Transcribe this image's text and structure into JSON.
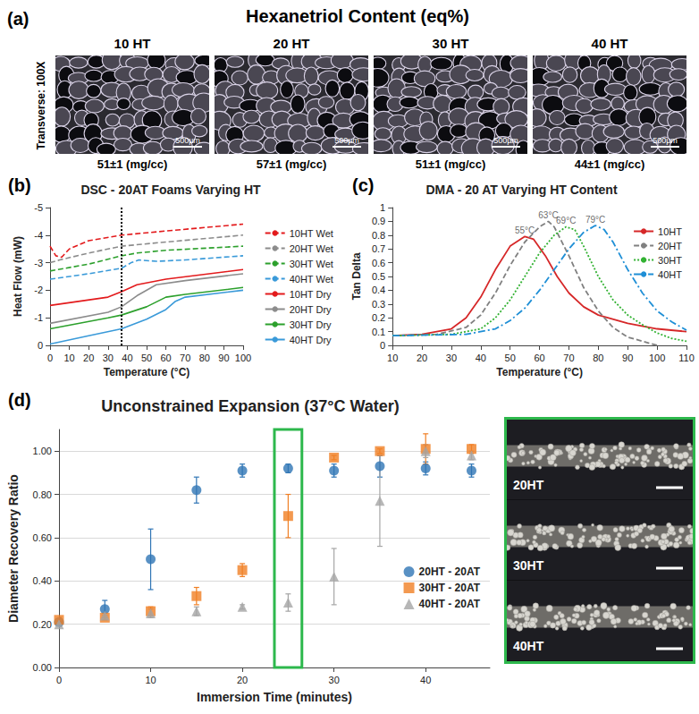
{
  "panel_a": {
    "label": "(a)",
    "title": "Hexanetriol Content (eq%)",
    "row_label": "Transverse: 100X",
    "scale_bar": "500µm",
    "images": [
      {
        "label": "10 HT",
        "density": "51±1 (mg/cc)"
      },
      {
        "label": "20 HT",
        "density": "57±1 (mg/cc)"
      },
      {
        "label": "30 HT",
        "density": "51±1 (mg/cc)"
      },
      {
        "label": "40 HT",
        "density": "44±1 (mg/cc)"
      }
    ]
  },
  "chart_data": [
    {
      "label": "(b)",
      "type": "line",
      "title": "DSC - 20AT Foams Varying HT",
      "x_label": "Temperature (°C)",
      "y_label": "Heat Flow (mW)",
      "xlim": [
        0,
        100
      ],
      "xticks": [
        0,
        10,
        20,
        30,
        40,
        50,
        60,
        70,
        80,
        90,
        100
      ],
      "ylim": [
        0,
        -5
      ],
      "yticks": [
        0,
        -1,
        -2,
        -3,
        -4,
        -5
      ],
      "grid": false,
      "legend": "right",
      "reference_x": 37,
      "series": [
        {
          "name": "10HT Wet",
          "color": "#e31a1c",
          "line_style": "dashed",
          "x": [
            0,
            3,
            6,
            10,
            20,
            37,
            60,
            100
          ],
          "values": [
            -3.6,
            -3.25,
            -3.2,
            -3.5,
            -3.8,
            -4.0,
            -4.15,
            -4.4
          ]
        },
        {
          "name": "20HT Wet",
          "color": "#8c8c8c",
          "line_style": "dashed",
          "x": [
            0,
            5,
            20,
            37,
            60,
            100
          ],
          "values": [
            -3.0,
            -3.1,
            -3.35,
            -3.6,
            -3.75,
            -4.0
          ]
        },
        {
          "name": "30HT Wet",
          "color": "#2ca02c",
          "line_style": "dashed",
          "x": [
            0,
            20,
            37,
            45,
            60,
            100
          ],
          "values": [
            -2.7,
            -2.95,
            -3.25,
            -3.35,
            -3.45,
            -3.6
          ]
        },
        {
          "name": "40HT Wet",
          "color": "#3a9ad9",
          "line_style": "dashed",
          "x": [
            0,
            20,
            37,
            42,
            46,
            55,
            70,
            100
          ],
          "values": [
            -2.4,
            -2.6,
            -2.8,
            -3.0,
            -3.1,
            -3.05,
            -3.1,
            -3.25
          ]
        },
        {
          "name": "10HT Dry",
          "color": "#e31a1c",
          "line_style": "solid",
          "x": [
            0,
            30,
            37,
            45,
            60,
            100
          ],
          "values": [
            -1.45,
            -1.75,
            -1.95,
            -2.2,
            -2.4,
            -2.75
          ]
        },
        {
          "name": "20HT Dry",
          "color": "#8c8c8c",
          "line_style": "solid",
          "x": [
            0,
            30,
            37,
            45,
            55,
            70,
            100
          ],
          "values": [
            -0.8,
            -1.2,
            -1.4,
            -1.8,
            -2.2,
            -2.35,
            -2.6
          ]
        },
        {
          "name": "30HT Dry",
          "color": "#2ca02c",
          "line_style": "solid",
          "x": [
            0,
            30,
            37,
            50,
            60,
            70,
            100
          ],
          "values": [
            -0.6,
            -1.0,
            -1.1,
            -1.4,
            -1.75,
            -1.85,
            -2.1
          ]
        },
        {
          "name": "40HT Dry",
          "color": "#3a9ad9",
          "line_style": "solid",
          "x": [
            0,
            20,
            37,
            50,
            60,
            65,
            70,
            100
          ],
          "values": [
            -0.05,
            -0.35,
            -0.6,
            -0.95,
            -1.3,
            -1.6,
            -1.75,
            -2.0
          ]
        }
      ]
    },
    {
      "label": "(c)",
      "type": "line",
      "title": "DMA - 20 AT Varying HT Content",
      "x_label": "Temperature (°C)",
      "y_label": "Tan Delta",
      "xlim": [
        10,
        110
      ],
      "xticks": [
        10,
        20,
        30,
        40,
        50,
        60,
        70,
        80,
        90,
        100,
        110
      ],
      "ylim": [
        0,
        1
      ],
      "yticks": [
        0,
        0.1,
        0.2,
        0.3,
        0.4,
        0.5,
        0.6,
        0.7,
        0.8,
        0.9,
        1
      ],
      "grid": false,
      "legend": "right",
      "annotations": [
        {
          "text": "55°C",
          "x": 55,
          "y": 0.79
        },
        {
          "text": "63°C",
          "x": 63,
          "y": 0.9
        },
        {
          "text": "69°C",
          "x": 69,
          "y": 0.86
        },
        {
          "text": "79°C",
          "x": 79,
          "y": 0.87
        }
      ],
      "series": [
        {
          "name": "10HT",
          "color": "#d62728",
          "line_style": "solid",
          "x": [
            10,
            20,
            30,
            35,
            40,
            45,
            50,
            55,
            58,
            62,
            66,
            70,
            75,
            80,
            90,
            100,
            110
          ],
          "values": [
            0.07,
            0.08,
            0.12,
            0.2,
            0.35,
            0.55,
            0.72,
            0.79,
            0.77,
            0.65,
            0.5,
            0.38,
            0.28,
            0.22,
            0.16,
            0.12,
            0.1
          ]
        },
        {
          "name": "20HT",
          "color": "#808080",
          "line_style": "dashed",
          "x": [
            10,
            25,
            35,
            40,
            45,
            50,
            55,
            60,
            63,
            65,
            70,
            75,
            80,
            85,
            90,
            95,
            100
          ],
          "values": [
            0.07,
            0.08,
            0.13,
            0.22,
            0.38,
            0.58,
            0.75,
            0.86,
            0.9,
            0.86,
            0.65,
            0.42,
            0.25,
            0.13,
            0.06,
            0.03,
            0.0
          ]
        },
        {
          "name": "30HT",
          "color": "#33b233",
          "line_style": "dotted",
          "x": [
            10,
            30,
            40,
            45,
            50,
            55,
            60,
            65,
            69,
            72,
            75,
            80,
            85,
            90,
            95,
            100,
            105,
            110
          ],
          "values": [
            0.07,
            0.08,
            0.12,
            0.2,
            0.33,
            0.5,
            0.67,
            0.8,
            0.86,
            0.84,
            0.72,
            0.5,
            0.33,
            0.22,
            0.15,
            0.09,
            0.05,
            0.03
          ]
        },
        {
          "name": "40HT",
          "color": "#1f8fd6",
          "line_style": "dashdot",
          "x": [
            10,
            35,
            45,
            50,
            55,
            60,
            65,
            70,
            75,
            79,
            82,
            85,
            90,
            95,
            100,
            105,
            110
          ],
          "values": [
            0.07,
            0.08,
            0.12,
            0.18,
            0.27,
            0.4,
            0.55,
            0.7,
            0.82,
            0.87,
            0.84,
            0.75,
            0.55,
            0.38,
            0.25,
            0.17,
            0.11
          ]
        }
      ]
    },
    {
      "label": "(d)",
      "type": "scatter",
      "title": "Unconstrained Expansion (37°C Water)",
      "x_label": "Immersion Time (minutes)",
      "y_label": "Diameter Recovery Ratio",
      "xlim": [
        0,
        47
      ],
      "xticks": [
        0,
        10,
        20,
        30,
        40
      ],
      "ylim": [
        0,
        1.1
      ],
      "yticks": [
        {
          "value": 0,
          "label": "0.00"
        },
        {
          "value": 0.2,
          "label": "0.20"
        },
        {
          "value": 0.4,
          "label": "0.40"
        },
        {
          "value": 0.6,
          "label": "0.60"
        },
        {
          "value": 0.8,
          "label": "0.80"
        },
        {
          "value": 1,
          "label": "1.00"
        }
      ],
      "grid": true,
      "legend": "lower right",
      "highlight_x": [
        23.5,
        26.5
      ],
      "series": [
        {
          "name": "20HT - 20AT",
          "color": "#2f75b5",
          "marker": "circle",
          "x": [
            0,
            5,
            10,
            15,
            20,
            25,
            30,
            35,
            40,
            45
          ],
          "values": [
            0.21,
            0.27,
            0.5,
            0.82,
            0.91,
            0.92,
            0.91,
            0.93,
            0.92,
            0.91
          ],
          "errors": [
            0.02,
            0.04,
            0.14,
            0.06,
            0.03,
            0.02,
            0.03,
            0.05,
            0.03,
            0.03
          ]
        },
        {
          "name": "30HT - 20AT",
          "color": "#f07f24",
          "marker": "square",
          "x": [
            0,
            5,
            10,
            15,
            20,
            25,
            30,
            35,
            40,
            45
          ],
          "values": [
            0.22,
            0.23,
            0.26,
            0.33,
            0.45,
            0.7,
            0.97,
            1.0,
            1.01,
            1.01
          ],
          "errors": [
            0.01,
            0.01,
            0.02,
            0.04,
            0.03,
            0.1,
            0.01,
            0.01,
            0.07,
            0.02
          ]
        },
        {
          "name": "40HT - 20AT",
          "color": "#a5a5a5",
          "marker": "triangle",
          "x": [
            0,
            5,
            10,
            15,
            20,
            25,
            30,
            35,
            40,
            45
          ],
          "values": [
            0.2,
            0.24,
            0.25,
            0.26,
            0.28,
            0.3,
            0.42,
            0.77,
            1.0,
            0.98
          ],
          "errors": [
            0.01,
            0.01,
            0.02,
            0.02,
            0.01,
            0.04,
            0.13,
            0.21,
            0.03,
            0.02
          ]
        }
      ]
    }
  ],
  "panel_d_photos": {
    "labels": [
      "20HT",
      "30HT",
      "40HT"
    ]
  }
}
